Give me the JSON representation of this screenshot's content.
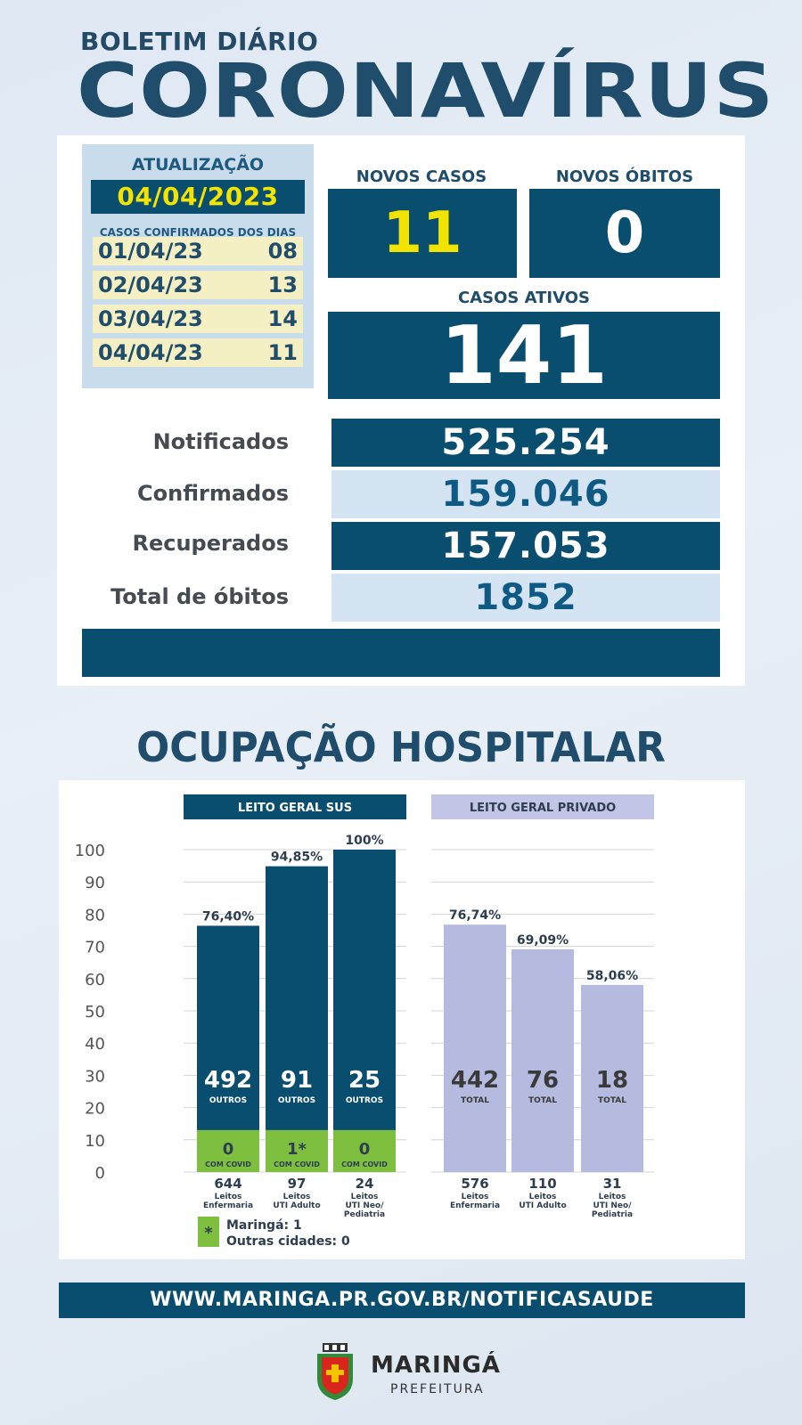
{
  "header": {
    "subtitle": "BOLETIM DIÁRIO",
    "title": "CORONAVÍRUS"
  },
  "update": {
    "title": "ATUALIZAÇÃO",
    "date": "04/04/2023",
    "subtitle": "CASOS CONFIRMADOS DOS DIAS",
    "rows": [
      {
        "date": "01/04/23",
        "value": "08"
      },
      {
        "date": "02/04/23",
        "value": "13"
      },
      {
        "date": "03/04/23",
        "value": "14"
      },
      {
        "date": "04/04/23",
        "value": "11"
      }
    ]
  },
  "new_cases": {
    "label": "NOVOS CASOS",
    "value": "11"
  },
  "new_deaths": {
    "label": "NOVOS ÓBITOS",
    "value": "0"
  },
  "active_cases": {
    "label": "CASOS ATIVOS",
    "value": "141"
  },
  "stats": [
    {
      "label": "Notificados",
      "value": "525.254",
      "style": "dark"
    },
    {
      "label": "Confirmados",
      "value": "159.046",
      "style": "light"
    },
    {
      "label": "Recuperados",
      "value": "157.053",
      "style": "dark"
    },
    {
      "label": "Total de óbitos",
      "value": "1852",
      "style": "light"
    }
  ],
  "hospital": {
    "title": "OCUPAÇÃO HOSPITALAR"
  },
  "chart_data": {
    "type": "bar",
    "y_ticks": [
      "100",
      "90",
      "80",
      "70",
      "60",
      "50",
      "40",
      "30",
      "20",
      "10",
      "0"
    ],
    "ylim": [
      0,
      100
    ],
    "groups": [
      {
        "header": "LEITO GERAL SUS",
        "bars": [
          {
            "percent": 76.4,
            "percent_label": "76,40%",
            "main_value": "492",
            "main_caption": "OUTROS",
            "covid_value": "0",
            "covid_caption": "COM COVID",
            "total": "644",
            "category": "Leitos Enfermaria"
          },
          {
            "percent": 94.85,
            "percent_label": "94,85%",
            "main_value": "91",
            "main_caption": "OUTROS",
            "covid_value": "1*",
            "covid_caption": "COM COVID",
            "total": "97",
            "category": "Leitos UTI Adulto"
          },
          {
            "percent": 100,
            "percent_label": "100%",
            "main_value": "25",
            "main_caption": "OUTROS",
            "covid_value": "0",
            "covid_caption": "COM COVID",
            "total": "24",
            "category": "Leitos UTI Neo/ Pediatria"
          }
        ]
      },
      {
        "header": "LEITO GERAL PRIVADO",
        "bars": [
          {
            "percent": 76.74,
            "percent_label": "76,74%",
            "main_value": "442",
            "main_caption": "TOTAL",
            "total": "576",
            "category": "Leitos Enfermaria"
          },
          {
            "percent": 69.09,
            "percent_label": "69,09%",
            "main_value": "76",
            "main_caption": "TOTAL",
            "total": "110",
            "category": "Leitos UTI Adulto"
          },
          {
            "percent": 58.06,
            "percent_label": "58,06%",
            "main_value": "18",
            "main_caption": "TOTAL",
            "total": "31",
            "category": "Leitos UTI Neo/ Pediatria"
          }
        ]
      }
    ],
    "legend": {
      "symbol": "*",
      "line1": "Maringá: 1",
      "line2": "Outras cidades: 0"
    },
    "colors": {
      "sus": "#0a4e6f",
      "covid": "#7fbf3f",
      "private": "#b5badf",
      "private_header": "#c3c5e6"
    }
  },
  "footer": {
    "url": "WWW.MARINGA.PR.GOV.BR/NOTIFICASAUDE"
  },
  "logo": {
    "name": "MARINGÁ",
    "sub": "PREFEITURA"
  }
}
